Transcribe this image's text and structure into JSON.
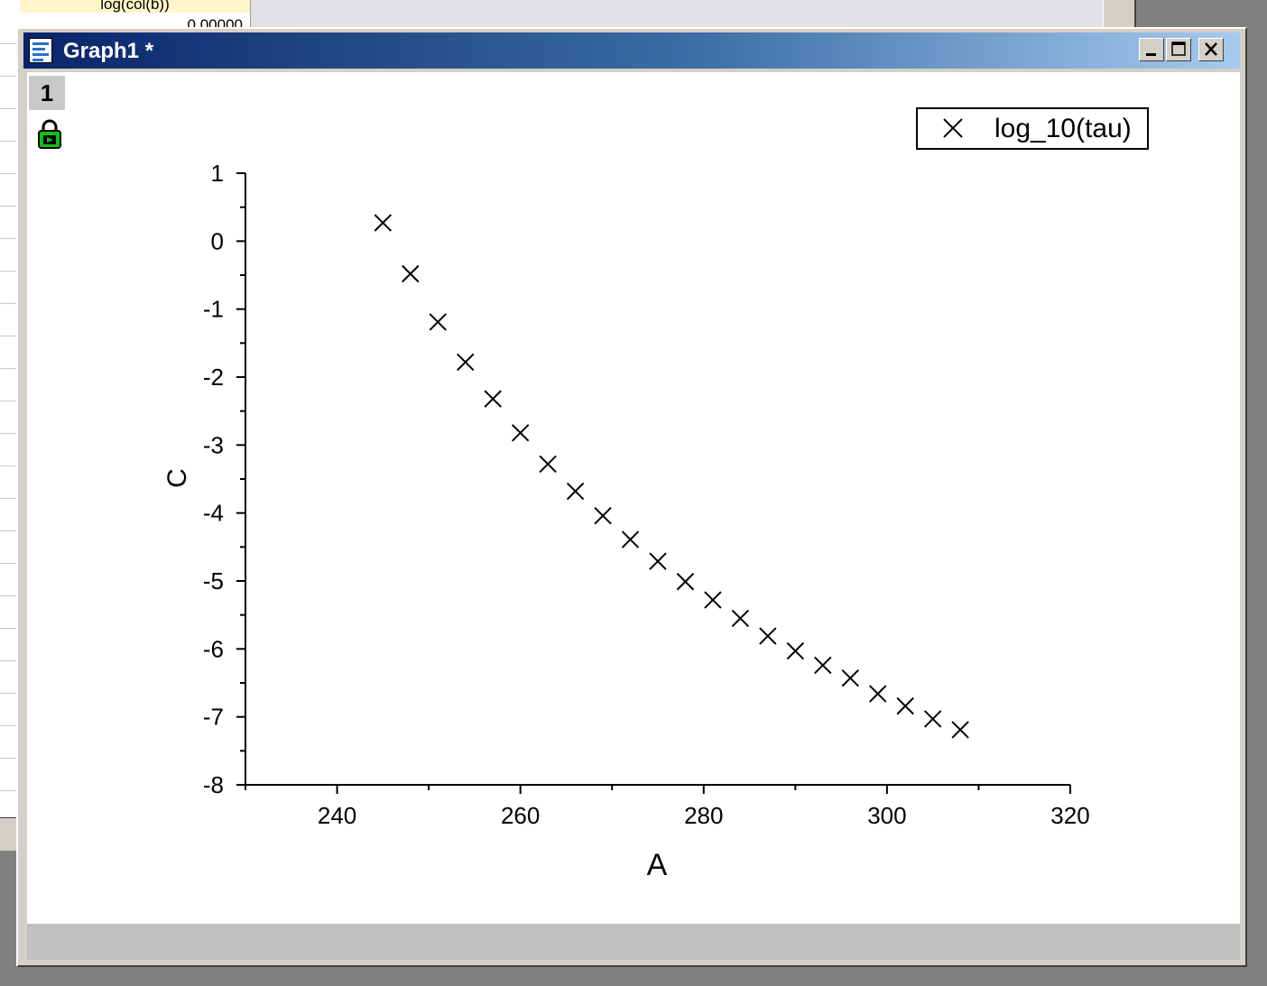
{
  "background": {
    "worksheet_column_header": "log(col(b))",
    "worksheet_cell_value": "0.00000"
  },
  "window": {
    "title": "Graph1 *",
    "buttons": {
      "minimize": "minimize-icon",
      "maximize": "maximize-icon",
      "close": "close-icon"
    },
    "layer_tab": "1",
    "lock_icon": "lock-icon"
  },
  "chart_data": {
    "type": "scatter",
    "marker": "x",
    "xlabel": "A",
    "ylabel": "C",
    "xlim": [
      230,
      320
    ],
    "ylim": [
      -8,
      1
    ],
    "xticks": [
      240,
      260,
      280,
      300,
      320
    ],
    "xtick_labels": [
      "240",
      "260",
      "280",
      "300",
      "320"
    ],
    "yticks": [
      1,
      0,
      -1,
      -2,
      -3,
      -4,
      -5,
      -6,
      -7,
      -8
    ],
    "ytick_labels": [
      "1",
      "0",
      "-1",
      "-2",
      "-3",
      "-4",
      "-5",
      "-6",
      "-7",
      "-8"
    ],
    "grid": false,
    "legend_position": "top-right",
    "series": [
      {
        "name": "log_10(tau)",
        "x": [
          245,
          248,
          251,
          254,
          257,
          260,
          263,
          266,
          269,
          272,
          275,
          278,
          281,
          284,
          287,
          290,
          293,
          296,
          299,
          302,
          305,
          308
        ],
        "y": [
          0.27,
          -0.48,
          -1.19,
          -1.78,
          -2.32,
          -2.82,
          -3.28,
          -3.68,
          -4.04,
          -4.39,
          -4.71,
          -5.01,
          -5.28,
          -5.55,
          -5.81,
          -6.03,
          -6.24,
          -6.43,
          -6.66,
          -6.84,
          -7.03,
          -7.19
        ]
      }
    ]
  }
}
